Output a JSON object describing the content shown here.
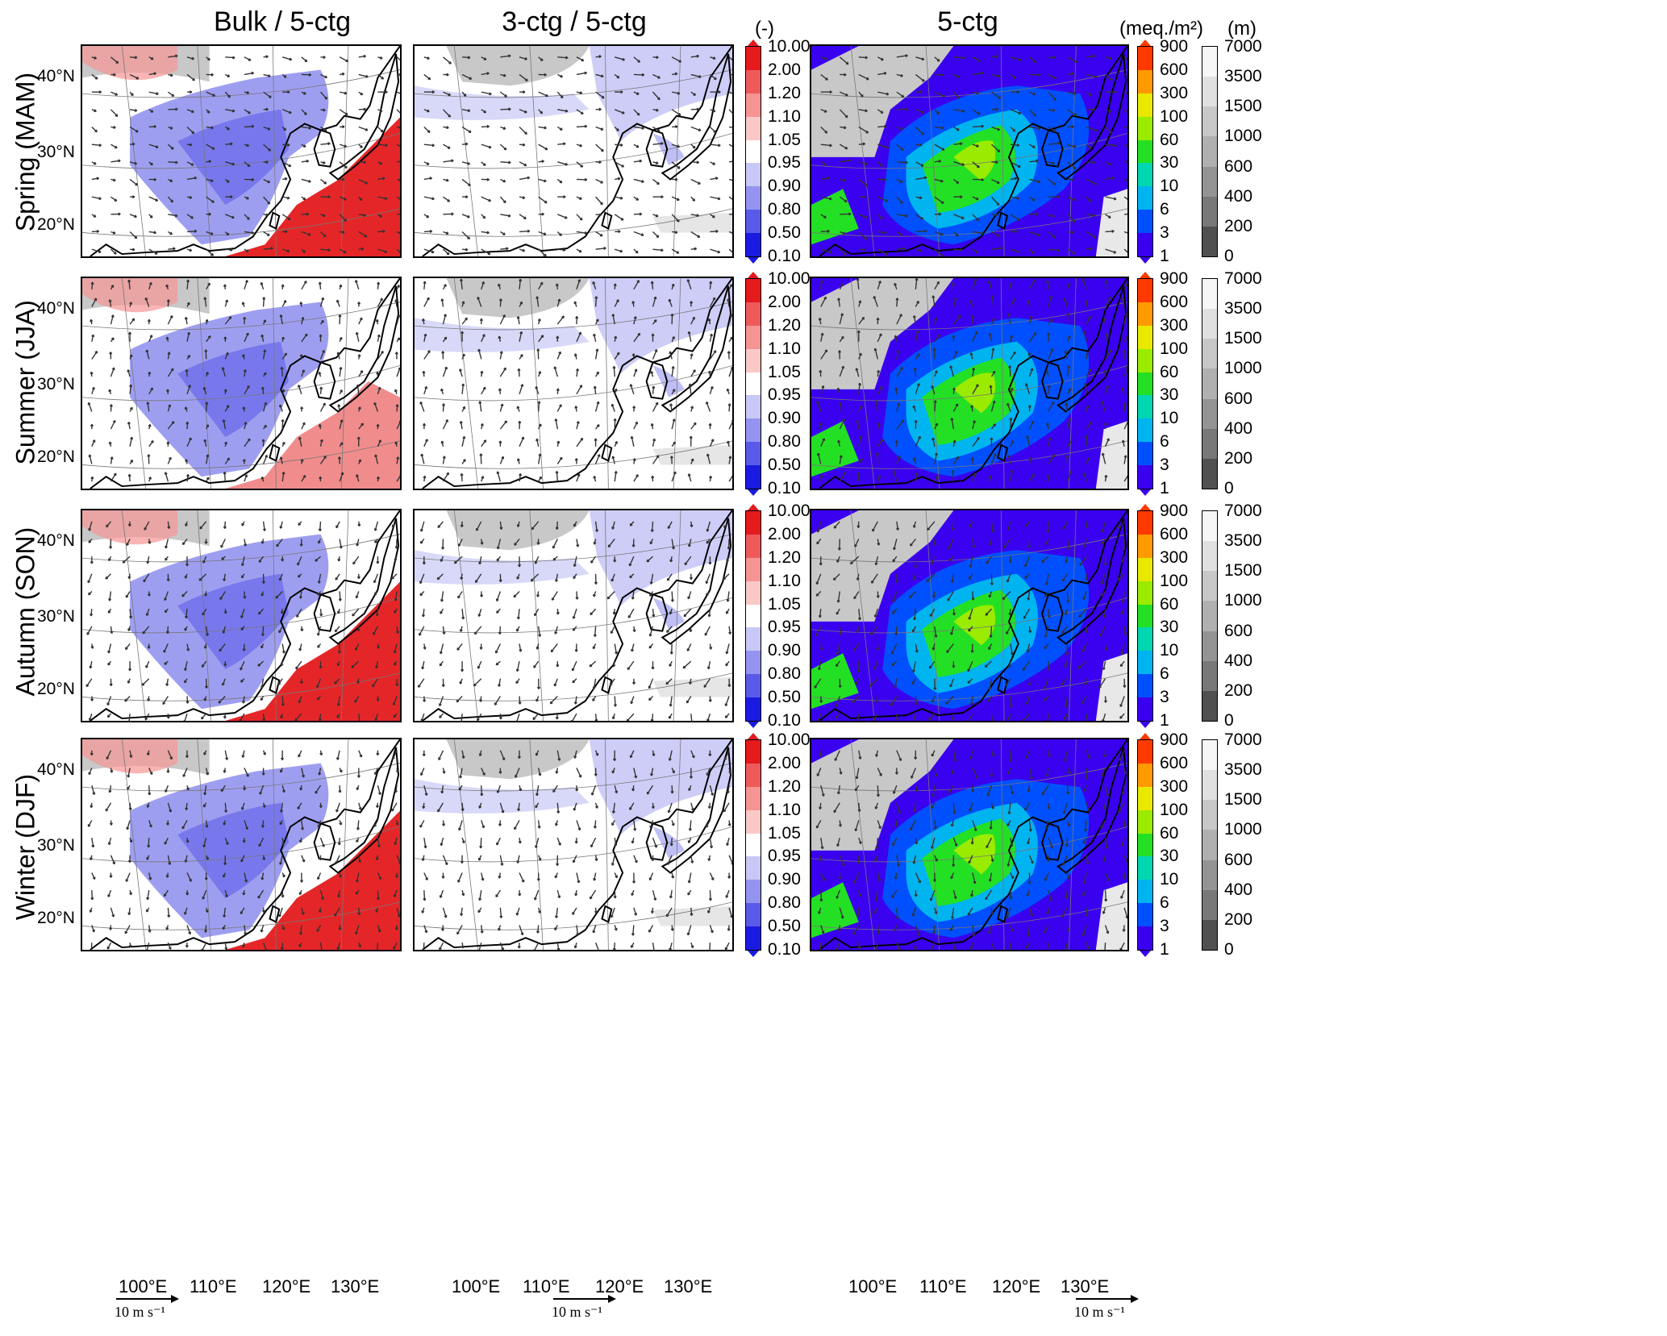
{
  "columns": {
    "c1": "Bulk / 5-ctg",
    "c2": "3-ctg / 5-ctg",
    "c3": "5-ctg"
  },
  "units": {
    "ratio": "(-)",
    "dep": "(meq./m²)",
    "elev": "(m)"
  },
  "rows": [
    {
      "label": "Spring (MAM)"
    },
    {
      "label": "Summer (JJA)"
    },
    {
      "label": "Autumn (SON)"
    },
    {
      "label": "Winter (DJF)"
    }
  ],
  "lat_labels": [
    "40°N",
    "30°N",
    "20°N"
  ],
  "lon_labels": [
    "100°E",
    "110°E",
    "120°E",
    "130°E"
  ],
  "scale_label": "10 m s⁻¹",
  "ratio_scale": {
    "ticks": [
      "10.00",
      "2.00",
      "1.20",
      "1.10",
      "1.05",
      "0.95",
      "0.90",
      "0.80",
      "0.50",
      "0.10"
    ],
    "colors": [
      "#e41a1c",
      "#ee5a5a",
      "#f69494",
      "#fbc8c8",
      "#ffffff",
      "#c8c8f6",
      "#9494f0",
      "#5a5ae8",
      "#1a1ae0"
    ]
  },
  "dep_scale": {
    "ticks": [
      "900",
      "600",
      "300",
      "100",
      "60",
      "30",
      "10",
      "6",
      "3",
      "1"
    ],
    "colors": [
      "#ff3a00",
      "#ff9a00",
      "#e8e800",
      "#9aeb00",
      "#24e024",
      "#00d6b0",
      "#00b4f0",
      "#0050ff",
      "#3a00f0"
    ]
  },
  "elev_scale": {
    "ticks": [
      "7000",
      "3500",
      "1500",
      "1000",
      "600",
      "400",
      "200",
      "0"
    ],
    "colors": [
      "#f6f6f6",
      "#e0e0e0",
      "#c8c8c8",
      "#b0b0b0",
      "#949494",
      "#787878",
      "#505050"
    ]
  }
}
